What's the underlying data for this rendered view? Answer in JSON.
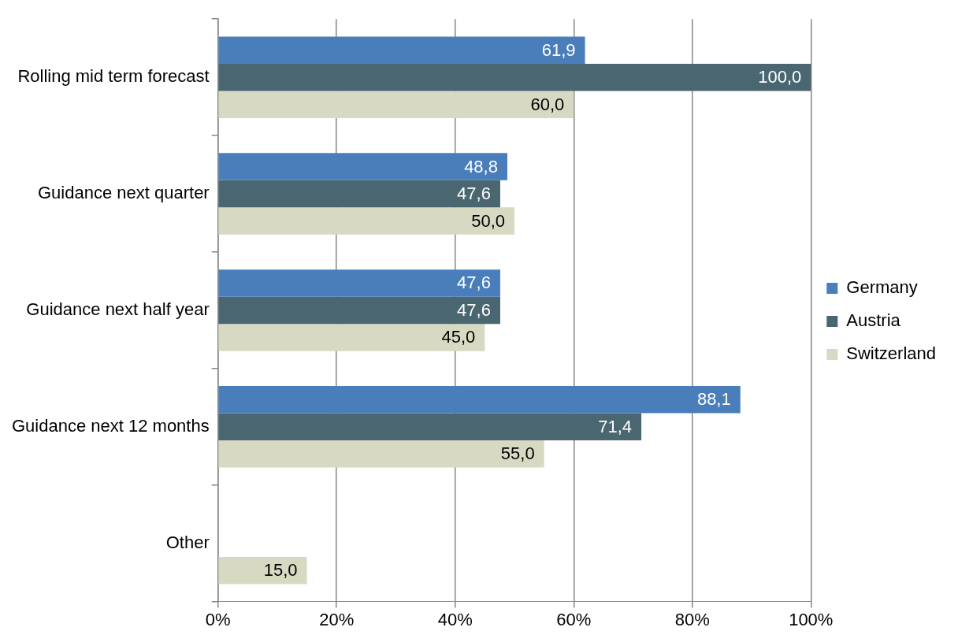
{
  "chart_data": {
    "type": "bar",
    "orientation": "horizontal",
    "categories": [
      "Rolling mid term forecast",
      "Guidance next quarter",
      "Guidance next half year",
      "Guidance next 12 months",
      "Other"
    ],
    "series": [
      {
        "name": "Germany",
        "color": "#4a7ebb",
        "values": [
          61.9,
          48.8,
          47.6,
          88.1,
          null
        ],
        "value_labels": [
          "61,9",
          "48,8",
          "47,6",
          "88,1",
          null
        ]
      },
      {
        "name": "Austria",
        "color": "#4a6670",
        "values": [
          100.0,
          47.6,
          47.6,
          71.4,
          null
        ],
        "value_labels": [
          "100,0",
          "47,6",
          "47,6",
          "71,4",
          null
        ]
      },
      {
        "name": "Switzerland",
        "color": "#d8d9c3",
        "values": [
          60.0,
          50.0,
          45.0,
          55.0,
          15.0
        ],
        "value_labels": [
          "60,0",
          "50,0",
          "45,0",
          "55,0",
          "15,0"
        ]
      }
    ],
    "xlim": [
      0,
      100
    ],
    "xticks": [
      {
        "value": 0,
        "label": "0%"
      },
      {
        "value": 20,
        "label": "20%"
      },
      {
        "value": 40,
        "label": "40%"
      },
      {
        "value": 60,
        "label": "60%"
      },
      {
        "value": 80,
        "label": "80%"
      },
      {
        "value": 100,
        "label": "100%"
      }
    ],
    "grid": "x",
    "legend": "right"
  }
}
